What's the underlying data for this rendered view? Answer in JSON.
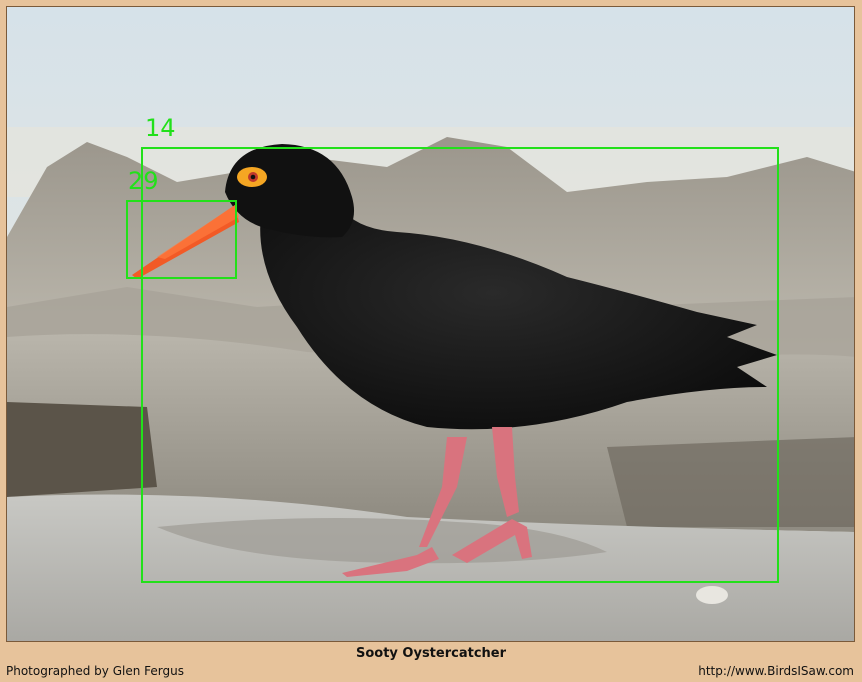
{
  "caption": "Sooty Oystercatcher",
  "credit": "Photographed by Glen Fergus",
  "url": "http://www.BirdsISaw.com",
  "annotations": [
    {
      "label": "14",
      "color": "#22e01a"
    },
    {
      "label": "29",
      "color": "#22e01a"
    }
  ]
}
